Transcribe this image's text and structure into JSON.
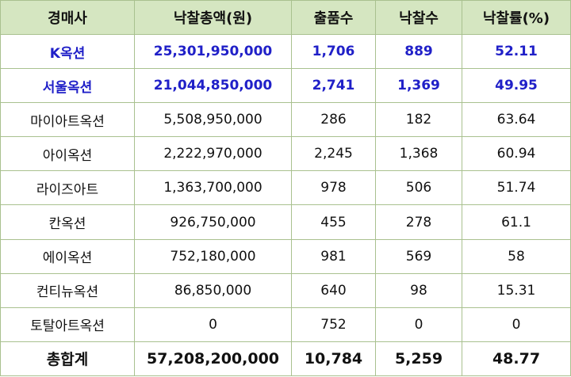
{
  "table": {
    "headers": [
      "경매사",
      "낙찰총액(원)",
      "출품수",
      "낙찰수",
      "낙찰률(%)"
    ],
    "rows": [
      [
        "K옥션",
        "25,301,950,000",
        "1,706",
        "889",
        "52.11"
      ],
      [
        "서울옥션",
        "21,044,850,000",
        "2,741",
        "1,369",
        "49.95"
      ],
      [
        "마이아트옥션",
        "5,508,950,000",
        "286",
        "182",
        "63.64"
      ],
      [
        "아이옥션",
        "2,222,970,000",
        "2,245",
        "1,368",
        "60.94"
      ],
      [
        "라이즈아트",
        "1,363,700,000",
        "978",
        "506",
        "51.74"
      ],
      [
        "칸옥션",
        "926,750,000",
        "455",
        "278",
        "61.1"
      ],
      [
        "에이옥션",
        "752,180,000",
        "981",
        "569",
        "58"
      ],
      [
        "컨티뉴옥션",
        "86,850,000",
        "640",
        "98",
        "15.31"
      ],
      [
        "토탈아트옥션",
        "0",
        "752",
        "0",
        "0"
      ]
    ],
    "total": [
      "총합계",
      "57,208,200,000",
      "10,784",
      "5,259",
      "48.77"
    ]
  },
  "colors": {
    "header_bg": "#d5e6c1",
    "border": "#a9c18f",
    "highlight_text": "#2020c8"
  }
}
